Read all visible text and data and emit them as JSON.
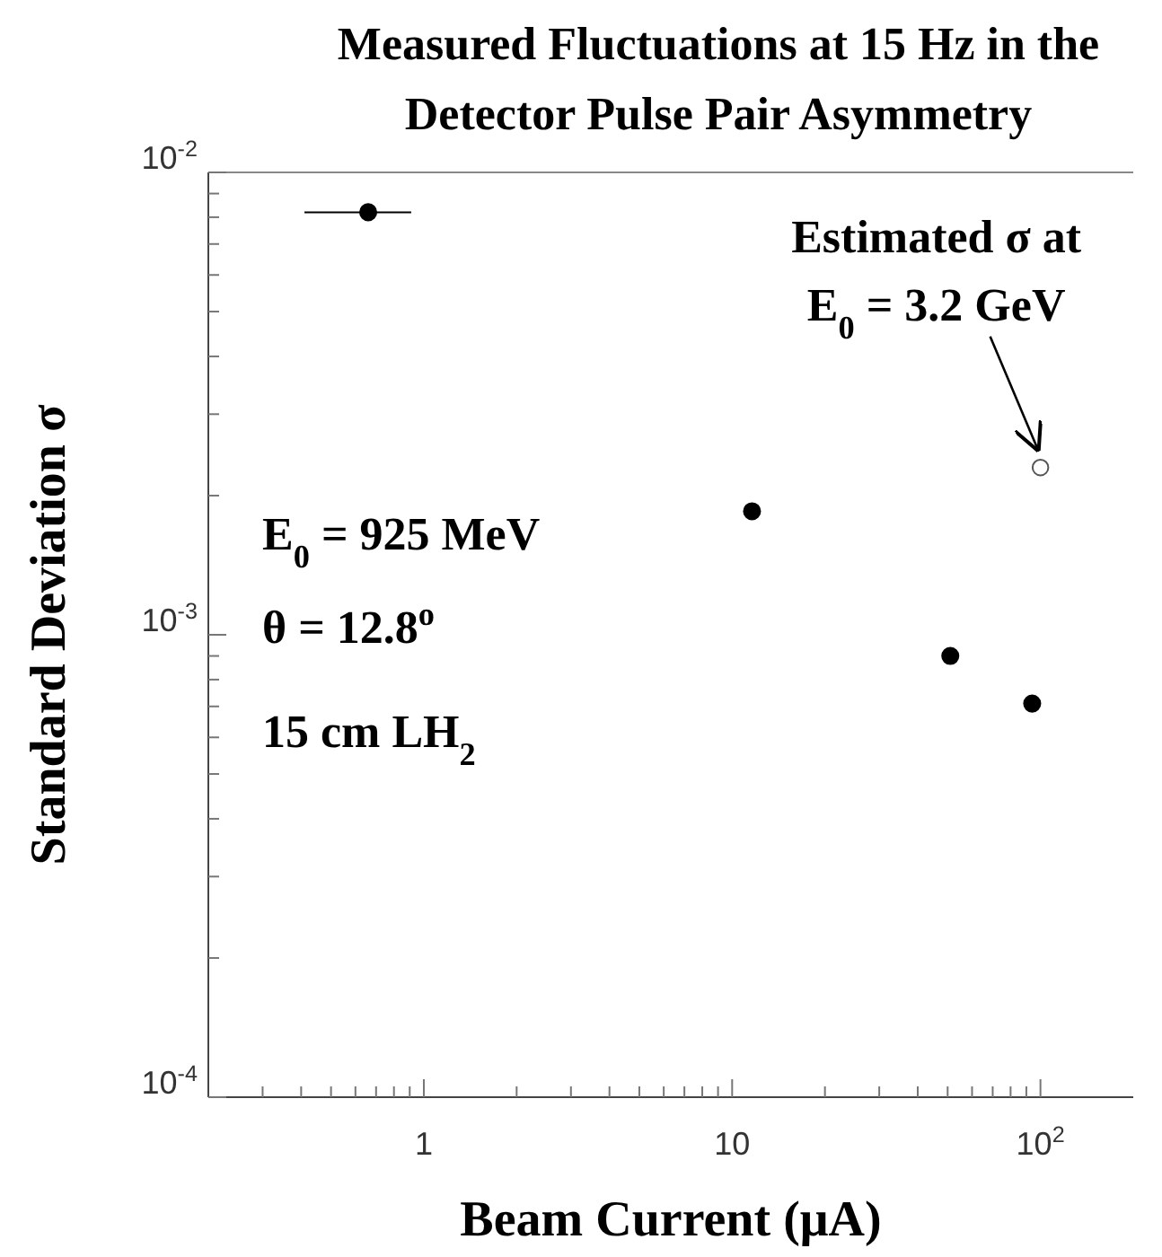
{
  "chart_data": {
    "type": "scatter",
    "title": "Measured Fluctuations at 15 Hz in the Detector Pulse Pair Asymmetry",
    "xlabel": "Beam Current (μA)",
    "ylabel": "Standard Deviation σ",
    "log": "xy",
    "marker": "circle",
    "xlim": [
      0.2,
      200
    ],
    "ylim": [
      0.0001,
      0.01
    ],
    "xticks": [
      {
        "value": 0.3,
        "label": null
      },
      {
        "value": 0.4,
        "label": null
      },
      {
        "value": 0.5,
        "label": null
      },
      {
        "value": 0.6,
        "label": null
      },
      {
        "value": 0.7,
        "label": null
      },
      {
        "value": 0.8,
        "label": null
      },
      {
        "value": 0.9,
        "label": null
      },
      1,
      {
        "value": 2,
        "label": null
      },
      {
        "value": 3,
        "label": null
      },
      {
        "value": 4,
        "label": null
      },
      {
        "value": 5,
        "label": null
      },
      {
        "value": 6,
        "label": null
      },
      {
        "value": 7,
        "label": null
      },
      {
        "value": 8,
        "label": null
      },
      {
        "value": 9,
        "label": null
      },
      10,
      {
        "value": 20,
        "label": null
      },
      {
        "value": 30,
        "label": null
      },
      {
        "value": 40,
        "label": null
      },
      {
        "value": 50,
        "label": null
      },
      {
        "value": 60,
        "label": null
      },
      {
        "value": 70,
        "label": null
      },
      {
        "value": 80,
        "label": null
      },
      {
        "value": 90,
        "label": null
      },
      {
        "value": 100,
        "label": "10$^{2}$"
      }
    ],
    "yticks": [
      {
        "value": 0.0001,
        "label": "10$^{-4}$"
      },
      {
        "value": 0.0002,
        "label": null
      },
      {
        "value": 0.0003,
        "label": null
      },
      {
        "value": 0.0004,
        "label": null
      },
      {
        "value": 0.0005,
        "label": null
      },
      {
        "value": 0.0006,
        "label": null
      },
      {
        "value": 0.0007,
        "label": null
      },
      {
        "value": 0.0008,
        "label": null
      },
      {
        "value": 0.0009,
        "label": null
      },
      {
        "value": 0.001,
        "label": "10$^{-3}$"
      },
      {
        "value": 0.002,
        "label": null
      },
      {
        "value": 0.003,
        "label": null
      },
      {
        "value": 0.004,
        "label": null
      },
      {
        "value": 0.005,
        "label": null
      },
      {
        "value": 0.006,
        "label": null
      },
      {
        "value": 0.007,
        "label": null
      },
      {
        "value": 0.008,
        "label": null
      },
      {
        "value": 0.009,
        "label": null
      },
      {
        "value": 0.01,
        "label": "10$^{-2}$"
      }
    ],
    "series": [
      {
        "color": "#000000",
        "x": [
          0.66,
          11.6,
          51,
          94
        ],
        "values": [
          0.0082,
          0.00185,
          0.0009,
          0.00071
        ],
        "xerrors": [
          [
            0.41,
            0.91
          ],
          null,
          null,
          null
        ]
      },
      {
        "color": "#555555",
        "x": [
          100
        ],
        "values": [
          0.0023
        ]
      }
    ],
    "annotations": [
      {
        "text": "Estimated σ at\nE$_{0}$ = 3.2 GeV",
        "x": 100,
        "y": 0.0023
      },
      "E$_{0}$ = 925 MeV",
      "θ = 12.8$^{o}$",
      "15 cm LH$_{2}$"
    ]
  }
}
